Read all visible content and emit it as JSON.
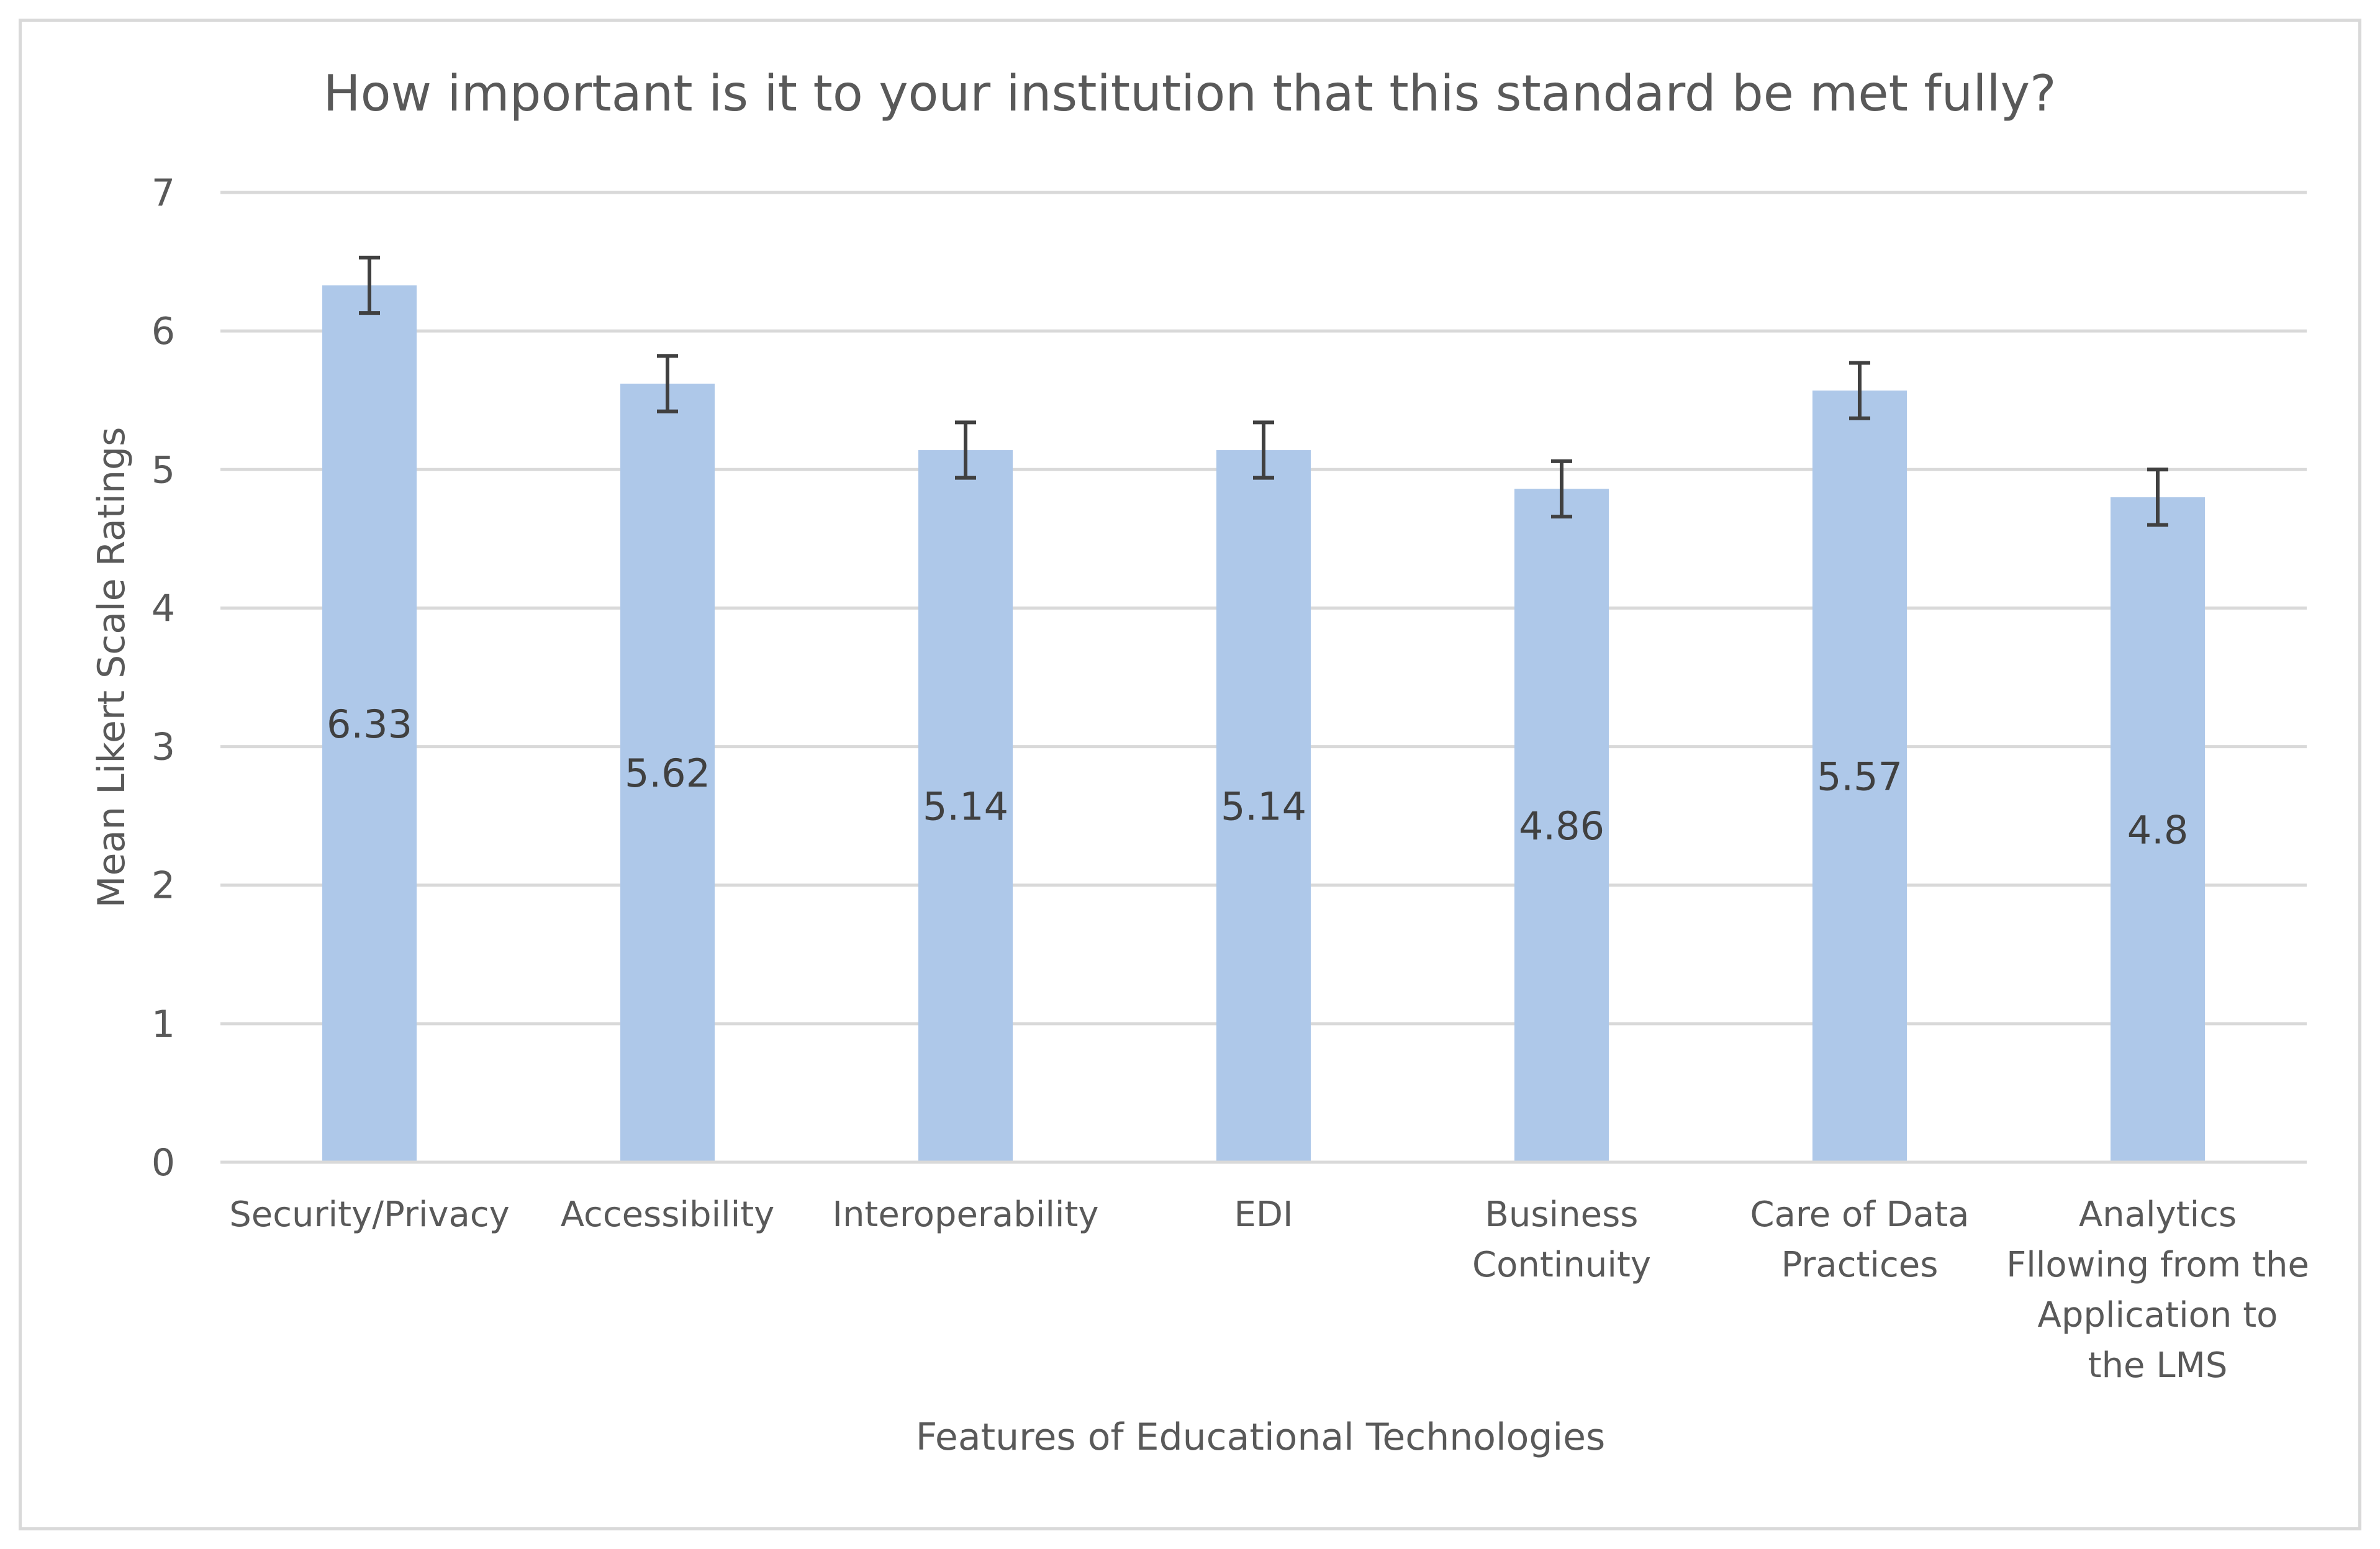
{
  "chart_data": {
    "type": "bar",
    "title": "How important is it to your institution that this standard be met fully?",
    "xlabel": "Features of Educational Technologies",
    "ylabel": "Mean Likert Scale Ratings",
    "ylim": [
      0,
      7
    ],
    "yticks": [
      0,
      1,
      2,
      3,
      4,
      5,
      6,
      7
    ],
    "grid": true,
    "legend": "none",
    "categories": [
      [
        "Security/Privacy"
      ],
      [
        "Accessibility"
      ],
      [
        "Interoperability"
      ],
      [
        "EDI"
      ],
      [
        "Business",
        "Continuity"
      ],
      [
        "Care of Data",
        "Practices"
      ],
      [
        "Analytics",
        "Fllowing from the",
        "Application to",
        "the LMS"
      ]
    ],
    "values": [
      6.33,
      5.62,
      5.14,
      5.14,
      4.86,
      5.57,
      4.8
    ],
    "data_labels": [
      "6.33",
      "5.62",
      "5.14",
      "5.14",
      "4.86",
      "5.57",
      "4.8"
    ],
    "error_bars": [
      0.2,
      0.2,
      0.2,
      0.2,
      0.2,
      0.2,
      0.2
    ],
    "colors": {
      "bar": "#aec8e9",
      "error_bar": "#404040",
      "grid": "#d9d9d9",
      "text": "#595959"
    }
  }
}
